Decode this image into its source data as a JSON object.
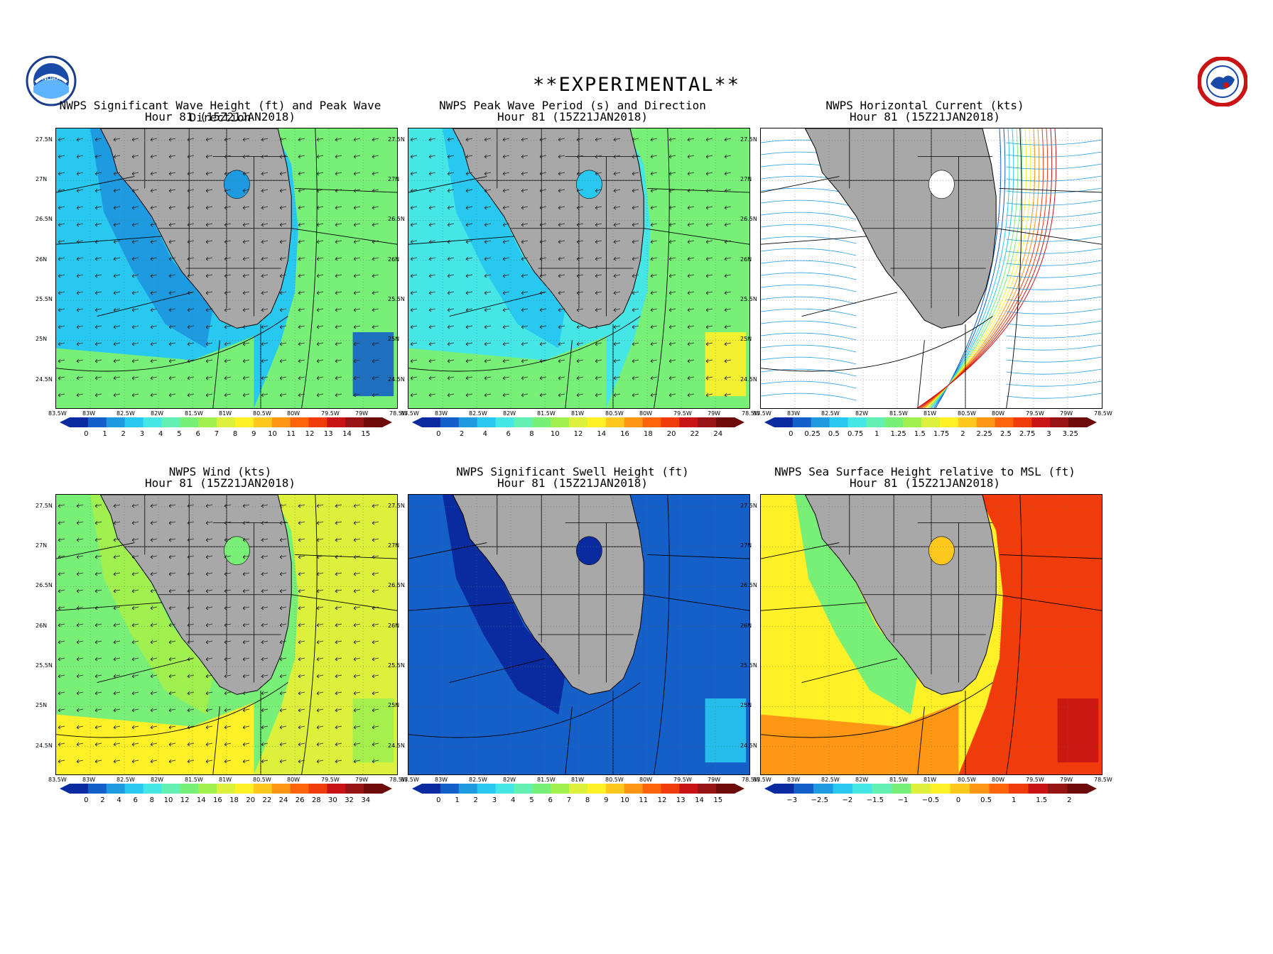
{
  "header": {
    "title": "**EXPERIMENTAL**"
  },
  "logos": {
    "left": "noaa-logo",
    "right": "nws-logo",
    "left_text": "NOAA"
  },
  "axes": {
    "lat_labels": [
      "27.5N",
      "27N",
      "26.5N",
      "26N",
      "25.5N",
      "25N",
      "24.5N"
    ],
    "lon_labels": [
      "83.5W",
      "83W",
      "82.5W",
      "82W",
      "81.5W",
      "81W",
      "80.5W",
      "80W",
      "79.5W",
      "79W",
      "78.5W"
    ]
  },
  "panels": [
    {
      "id": "wave-height",
      "title_line1": "NWPS Significant Wave Height (ft) and Peak Wave Direction",
      "title_line2": "Hour 81 (15Z21JAN2018)",
      "colorbar_labels": [
        "0",
        "1",
        "2",
        "3",
        "4",
        "5",
        "6",
        "7",
        "8",
        "9",
        "10",
        "11",
        "12",
        "13",
        "14",
        "15"
      ],
      "colors": [
        "#0a2aa0",
        "#1460c8",
        "#1e9be0",
        "#28c8f0",
        "#46e6e6",
        "#64f0b4",
        "#78f078",
        "#a0f050",
        "#dcf03c",
        "#fff028",
        "#ffc81e",
        "#ff9614",
        "#ff640a",
        "#f03c0a",
        "#c81414",
        "#961414",
        "#6e0a0a"
      ]
    },
    {
      "id": "peak-period",
      "title_line1": "NWPS Peak Wave Period (s) and Direction",
      "title_line2": "Hour 81 (15Z21JAN2018)",
      "colorbar_labels": [
        "0",
        "2",
        "4",
        "6",
        "8",
        "10",
        "12",
        "14",
        "16",
        "18",
        "20",
        "22",
        "24"
      ],
      "colors": [
        "#0a2aa0",
        "#1460c8",
        "#1e9be0",
        "#28c8f0",
        "#46e6e6",
        "#64f0b4",
        "#78f078",
        "#a0f050",
        "#dcf03c",
        "#fff028",
        "#ffc81e",
        "#ff9614",
        "#ff640a",
        "#f03c0a",
        "#c81414",
        "#961414",
        "#6e0a0a"
      ]
    },
    {
      "id": "horizontal-current",
      "title_line1": "NWPS Horizontal Current (kts)",
      "title_line2": "Hour 81 (15Z21JAN2018)",
      "colorbar_labels": [
        "0",
        "0.25",
        "0.5",
        "0.75",
        "1",
        "1.25",
        "1.5",
        "1.75",
        "2",
        "2.25",
        "2.5",
        "2.75",
        "3",
        "3.25"
      ],
      "colors": [
        "#0a2aa0",
        "#1460c8",
        "#1e9be0",
        "#28c8f0",
        "#46e6e6",
        "#64f0b4",
        "#78f078",
        "#a0f050",
        "#dcf03c",
        "#fff028",
        "#ffc81e",
        "#ff9614",
        "#ff640a",
        "#f03c0a",
        "#c81414",
        "#961414",
        "#6e0a0a"
      ]
    },
    {
      "id": "wind",
      "title_line1": "NWPS Wind (kts)",
      "title_line2": "Hour 81 (15Z21JAN2018)",
      "colorbar_labels": [
        "0",
        "2",
        "4",
        "6",
        "8",
        "10",
        "12",
        "14",
        "16",
        "18",
        "20",
        "22",
        "24",
        "26",
        "28",
        "30",
        "32",
        "34"
      ],
      "colors": [
        "#0a2aa0",
        "#1460c8",
        "#1e9be0",
        "#28c8f0",
        "#46e6e6",
        "#64f0b4",
        "#78f078",
        "#a0f050",
        "#dcf03c",
        "#fff028",
        "#ffc81e",
        "#ff9614",
        "#ff640a",
        "#f03c0a",
        "#c81414",
        "#961414",
        "#6e0a0a"
      ]
    },
    {
      "id": "swell-height",
      "title_line1": "NWPS Significant Swell Height (ft)",
      "title_line2": "Hour 81 (15Z21JAN2018)",
      "colorbar_labels": [
        "0",
        "1",
        "2",
        "3",
        "4",
        "5",
        "6",
        "7",
        "8",
        "9",
        "10",
        "11",
        "12",
        "13",
        "14",
        "15"
      ],
      "colors": [
        "#0a2aa0",
        "#1460c8",
        "#1e9be0",
        "#28c8f0",
        "#46e6e6",
        "#64f0b4",
        "#78f078",
        "#a0f050",
        "#dcf03c",
        "#fff028",
        "#ffc81e",
        "#ff9614",
        "#ff640a",
        "#f03c0a",
        "#c81414",
        "#961414",
        "#6e0a0a"
      ]
    },
    {
      "id": "sea-surface-height",
      "title_line1": "NWPS Sea Surface Height relative to MSL (ft)",
      "title_line2": "Hour 81 (15Z21JAN2018)",
      "colorbar_labels": [
        "−3",
        "−2.5",
        "−2",
        "−1.5",
        "−1",
        "−0.5",
        "0",
        "0.5",
        "1",
        "1.5",
        "2"
      ],
      "colors": [
        "#0a2aa0",
        "#1460c8",
        "#1e9be0",
        "#28c8f0",
        "#46e6e6",
        "#64f0b4",
        "#78f078",
        "#dcf03c",
        "#fff028",
        "#ffc81e",
        "#ff9614",
        "#ff640a",
        "#f03c0a",
        "#c81414",
        "#961414",
        "#6e0a0a"
      ]
    }
  ],
  "map_fields": {
    "wave-height": {
      "gulf": "#28c8f0",
      "near_coast": "#1e9be0",
      "atlantic": "#78f078",
      "south": "#78f078",
      "patch": "#1460c8",
      "lake": "#1e9be0"
    },
    "peak-period": {
      "gulf": "#46e6e6",
      "near_coast": "#28c8f0",
      "atlantic": "#78f078",
      "south": "#78f078",
      "patch": "#fff028",
      "lake": "#28c8f0"
    },
    "horizontal-current": {
      "gulf": "#ffffff",
      "near_coast": "#ffffff",
      "atlantic": "#ffffff",
      "south": "#ffffff",
      "patch": "#ffffff",
      "lake": "#ffffff"
    },
    "wind": {
      "gulf": "#78f078",
      "near_coast": "#a0f050",
      "atlantic": "#dcf03c",
      "south": "#fff028",
      "patch": "#a0f050",
      "lake": "#78f078"
    },
    "swell-height": {
      "gulf": "#1460c8",
      "near_coast": "#0a2aa0",
      "atlantic": "#1460c8",
      "south": "#1460c8",
      "patch": "#28c8f0",
      "lake": "#0a2aa0"
    },
    "sea-surface-height": {
      "gulf": "#fff028",
      "near_coast": "#78f078",
      "atlantic": "#f03c0a",
      "south": "#ff9614",
      "patch": "#c81414",
      "lake": "#ffc81e"
    }
  }
}
